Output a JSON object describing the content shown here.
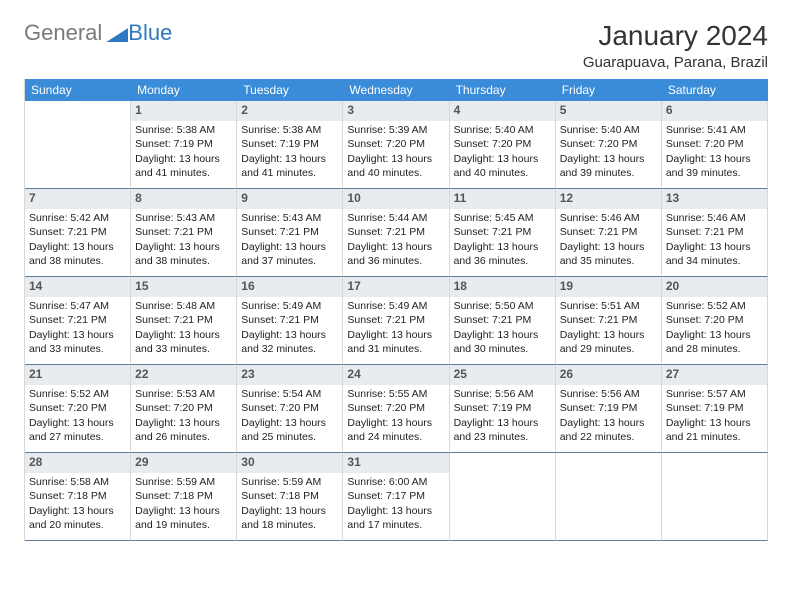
{
  "brand": {
    "general": "General",
    "blue": "Blue"
  },
  "title": "January 2024",
  "location": "Guarapuava, Parana, Brazil",
  "dow": [
    "Sunday",
    "Monday",
    "Tuesday",
    "Wednesday",
    "Thursday",
    "Friday",
    "Saturday"
  ],
  "colors": {
    "header_bg": "#3a8bd8",
    "daynum_bg": "#e9ecef",
    "border": "#d8d8d8",
    "row_border": "#5b7da0",
    "logo_gray": "#7a7a7a",
    "logo_blue": "#2f78c4"
  },
  "first_weekday": 1,
  "days": [
    {
      "n": 1,
      "sr": "5:38 AM",
      "ss": "7:19 PM",
      "dl": "13 hours and 41 minutes."
    },
    {
      "n": 2,
      "sr": "5:38 AM",
      "ss": "7:19 PM",
      "dl": "13 hours and 41 minutes."
    },
    {
      "n": 3,
      "sr": "5:39 AM",
      "ss": "7:20 PM",
      "dl": "13 hours and 40 minutes."
    },
    {
      "n": 4,
      "sr": "5:40 AM",
      "ss": "7:20 PM",
      "dl": "13 hours and 40 minutes."
    },
    {
      "n": 5,
      "sr": "5:40 AM",
      "ss": "7:20 PM",
      "dl": "13 hours and 39 minutes."
    },
    {
      "n": 6,
      "sr": "5:41 AM",
      "ss": "7:20 PM",
      "dl": "13 hours and 39 minutes."
    },
    {
      "n": 7,
      "sr": "5:42 AM",
      "ss": "7:21 PM",
      "dl": "13 hours and 38 minutes."
    },
    {
      "n": 8,
      "sr": "5:43 AM",
      "ss": "7:21 PM",
      "dl": "13 hours and 38 minutes."
    },
    {
      "n": 9,
      "sr": "5:43 AM",
      "ss": "7:21 PM",
      "dl": "13 hours and 37 minutes."
    },
    {
      "n": 10,
      "sr": "5:44 AM",
      "ss": "7:21 PM",
      "dl": "13 hours and 36 minutes."
    },
    {
      "n": 11,
      "sr": "5:45 AM",
      "ss": "7:21 PM",
      "dl": "13 hours and 36 minutes."
    },
    {
      "n": 12,
      "sr": "5:46 AM",
      "ss": "7:21 PM",
      "dl": "13 hours and 35 minutes."
    },
    {
      "n": 13,
      "sr": "5:46 AM",
      "ss": "7:21 PM",
      "dl": "13 hours and 34 minutes."
    },
    {
      "n": 14,
      "sr": "5:47 AM",
      "ss": "7:21 PM",
      "dl": "13 hours and 33 minutes."
    },
    {
      "n": 15,
      "sr": "5:48 AM",
      "ss": "7:21 PM",
      "dl": "13 hours and 33 minutes."
    },
    {
      "n": 16,
      "sr": "5:49 AM",
      "ss": "7:21 PM",
      "dl": "13 hours and 32 minutes."
    },
    {
      "n": 17,
      "sr": "5:49 AM",
      "ss": "7:21 PM",
      "dl": "13 hours and 31 minutes."
    },
    {
      "n": 18,
      "sr": "5:50 AM",
      "ss": "7:21 PM",
      "dl": "13 hours and 30 minutes."
    },
    {
      "n": 19,
      "sr": "5:51 AM",
      "ss": "7:21 PM",
      "dl": "13 hours and 29 minutes."
    },
    {
      "n": 20,
      "sr": "5:52 AM",
      "ss": "7:20 PM",
      "dl": "13 hours and 28 minutes."
    },
    {
      "n": 21,
      "sr": "5:52 AM",
      "ss": "7:20 PM",
      "dl": "13 hours and 27 minutes."
    },
    {
      "n": 22,
      "sr": "5:53 AM",
      "ss": "7:20 PM",
      "dl": "13 hours and 26 minutes."
    },
    {
      "n": 23,
      "sr": "5:54 AM",
      "ss": "7:20 PM",
      "dl": "13 hours and 25 minutes."
    },
    {
      "n": 24,
      "sr": "5:55 AM",
      "ss": "7:20 PM",
      "dl": "13 hours and 24 minutes."
    },
    {
      "n": 25,
      "sr": "5:56 AM",
      "ss": "7:19 PM",
      "dl": "13 hours and 23 minutes."
    },
    {
      "n": 26,
      "sr": "5:56 AM",
      "ss": "7:19 PM",
      "dl": "13 hours and 22 minutes."
    },
    {
      "n": 27,
      "sr": "5:57 AM",
      "ss": "7:19 PM",
      "dl": "13 hours and 21 minutes."
    },
    {
      "n": 28,
      "sr": "5:58 AM",
      "ss": "7:18 PM",
      "dl": "13 hours and 20 minutes."
    },
    {
      "n": 29,
      "sr": "5:59 AM",
      "ss": "7:18 PM",
      "dl": "13 hours and 19 minutes."
    },
    {
      "n": 30,
      "sr": "5:59 AM",
      "ss": "7:18 PM",
      "dl": "13 hours and 18 minutes."
    },
    {
      "n": 31,
      "sr": "6:00 AM",
      "ss": "7:17 PM",
      "dl": "13 hours and 17 minutes."
    }
  ],
  "labels": {
    "sunrise": "Sunrise:",
    "sunset": "Sunset:",
    "daylight": "Daylight:"
  }
}
